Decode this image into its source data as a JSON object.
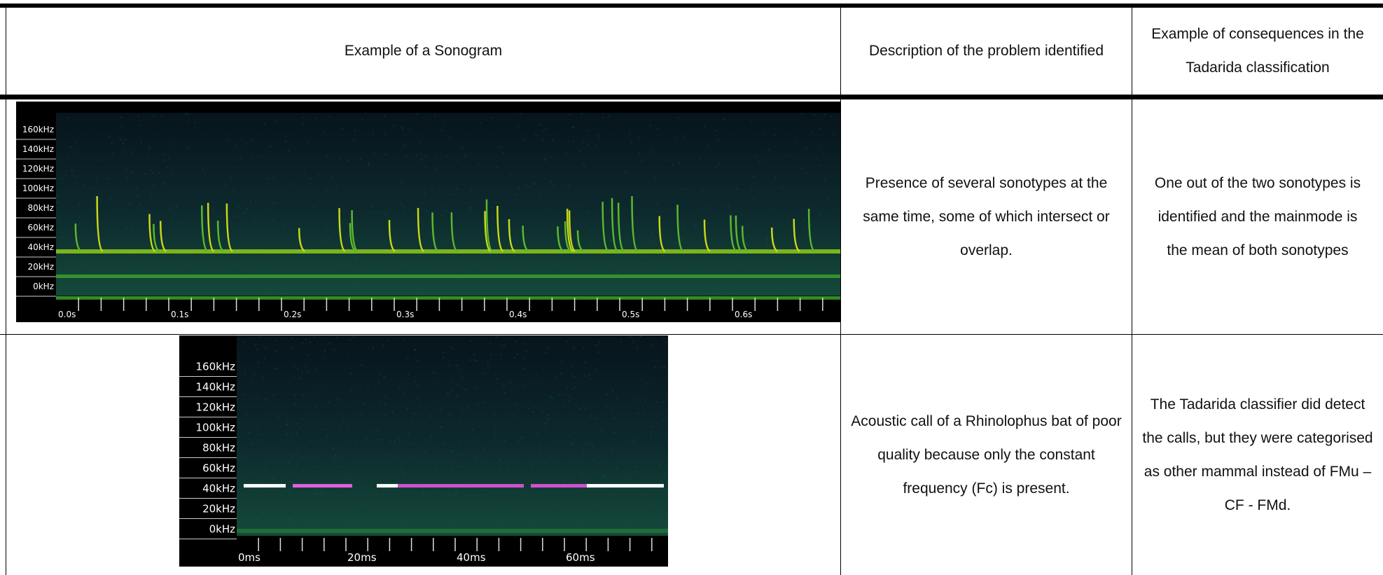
{
  "table": {
    "header": [
      "Example of a Sonogram",
      "Description of the problem identified",
      "Example of consequences in the Tadarida classification"
    ],
    "rows": [
      {
        "sonogram": {
          "y_labels": [
            "160kHz",
            "140kHz",
            "120kHz",
            "100kHz",
            "80kHz",
            "60kHz",
            "40kHz",
            "20kHz",
            "0kHz"
          ],
          "x_labels": [
            "0.0s",
            "0.1s",
            "0.2s",
            "0.3s",
            "0.4s",
            "0.5s",
            "0.6s"
          ]
        },
        "description": "Presence of several sonotypes at the same time, some of which intersect or overlap.",
        "consequence": "One out of the two sonotypes is identified and the mainmode is the mean of both sonotypes"
      },
      {
        "sonogram": {
          "y_labels": [
            "160kHz",
            "140kHz",
            "120kHz",
            "100kHz",
            "80kHz",
            "60kHz",
            "40kHz",
            "20kHz",
            "0kHz"
          ],
          "x_labels": [
            "0ms",
            "20ms",
            "40ms",
            "60ms"
          ]
        },
        "description": "Acoustic call of a Rhinolophus bat of poor quality because only the constant frequency (Fc) is present.",
        "consequence": "The Tadarida classifier did detect the calls, but they were categorised as other mammal instead of FMu – CF - FMd."
      }
    ]
  }
}
